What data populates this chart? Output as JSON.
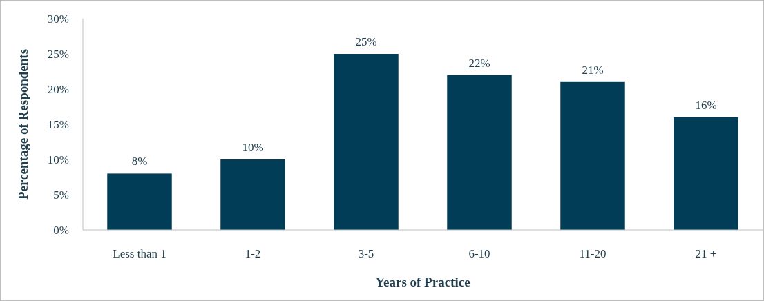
{
  "chart_data": {
    "type": "bar",
    "xlabel": "Years of Practice",
    "ylabel": "Percentage of Respondents",
    "categories": [
      "Less than 1",
      "1-2",
      "3-5",
      "6-10",
      "11-20",
      "21 +"
    ],
    "values": [
      8,
      10,
      25,
      22,
      21,
      16
    ],
    "value_labels": [
      "8%",
      "10%",
      "25%",
      "22%",
      "21%",
      "16%"
    ],
    "color": "#023d57",
    "ylim": [
      0,
      30
    ],
    "yticks": [
      {
        "value": 0,
        "label": "0%"
      },
      {
        "value": 5,
        "label": "5%"
      },
      {
        "value": 10,
        "label": "10%"
      },
      {
        "value": 15,
        "label": "15%"
      },
      {
        "value": 20,
        "label": "20%"
      },
      {
        "value": 25,
        "label": "25%"
      },
      {
        "value": 30,
        "label": "30%"
      }
    ],
    "grid": false
  }
}
